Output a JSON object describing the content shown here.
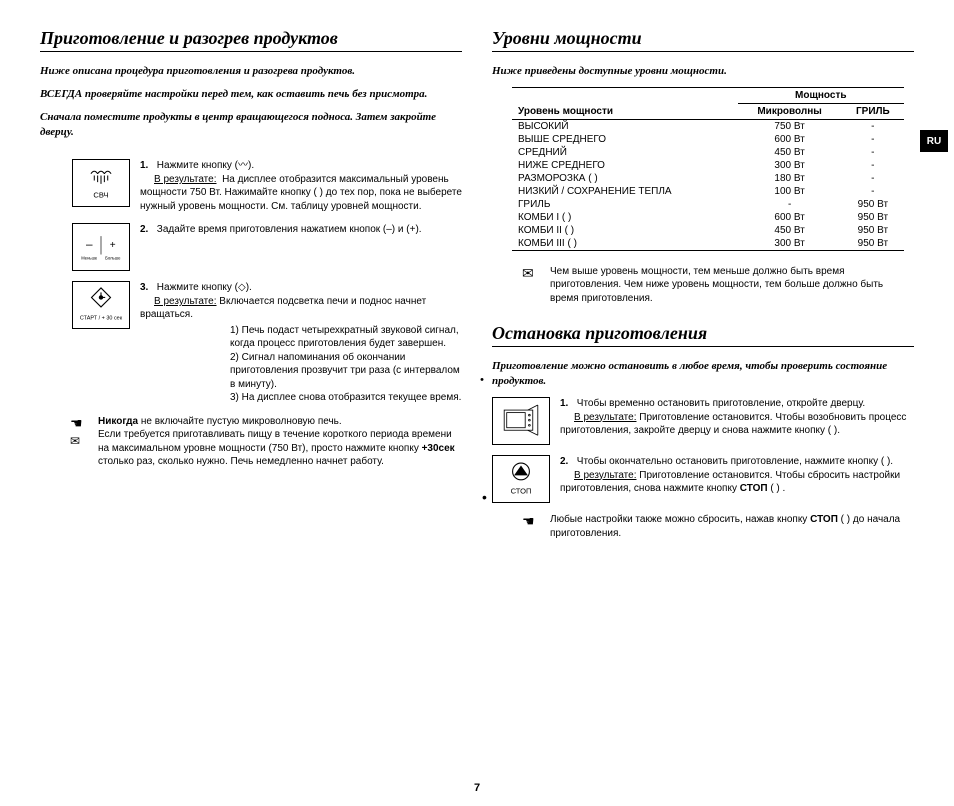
{
  "page_number": "7",
  "lang_tab": "RU",
  "left": {
    "heading": "Приготовление и разогрев продуктов",
    "intro1": "Ниже описана процедура приготовления и разогрева продуктов.",
    "intro2": "ВСЕГДА проверяйте настройки перед тем, как оставить печь без присмотра.",
    "intro3": "Сначала поместите продукты в центр вращающегося подноса. Затем закройте дверцу.",
    "step1": {
      "num": "1.",
      "text_a": "Нажмите кнопку (",
      "text_b": ").",
      "result_label": "В результате:",
      "result_text": "На дисплее отобразится максимальный уровень мощности 750 Вт. Нажимайте кнопку ( ) до тех пор, пока не выберете нужный уровень мощности. См. таблицу уровней мощности.",
      "icon_label": "СВЧ"
    },
    "step2": {
      "num": "2.",
      "text": "Задайте время приготовления нажатием кнопок (–) и (+).",
      "icon_minus": "–",
      "icon_minus_label": "Меньше",
      "icon_plus": "+",
      "icon_plus_label": "Больше"
    },
    "step3": {
      "num": "3.",
      "text_a": "Нажмите кнопку (",
      "text_b": ").",
      "result_label": "В результате:",
      "result_text": "Включается подсветка печи и поднос начнет вращаться.",
      "li1": "1) Печь подаст четырехкратный звуковой сигнал, когда процесс приготовления будет завершен.",
      "li2": "2) Сигнал напоминания об окончании приготовления прозвучит три раза (с интервалом в минуту).",
      "li3": "3) На дисплее снова отобразится текущее время.",
      "icon_label": "СТАРТ  / + 30 сек"
    },
    "note_a": "Никогда",
    "note_b": " не включайте пустую микроволновую печь.",
    "note_c": "Если требуется приготавливать пищу в течение короткого периода времени на максимальном уровне мощности (750 Вт), просто нажмите кнопку ",
    "note_d": "+30сек",
    "note_e": " столько раз, сколько нужно. Печь немедленно начнет работу."
  },
  "right": {
    "heading_power": "Уровни мощности",
    "intro_power": "Ниже приведены доступные уровни мощности.",
    "table": {
      "h_level": "Уровень мощности",
      "h_power": "Мощность",
      "h_micro": "Микроволны",
      "h_grill": "ГРИЛЬ",
      "rows": [
        {
          "l": "ВЫСОКИЙ",
          "m": "750 Вт",
          "g": "-"
        },
        {
          "l": "ВЫШЕ СРЕДНЕГО",
          "m": "600 Вт",
          "g": "-"
        },
        {
          "l": "СРЕДНИЙ",
          "m": "450 Вт",
          "g": "-"
        },
        {
          "l": "НИЖЕ СРЕДНЕГО",
          "m": "300 Вт",
          "g": "-"
        },
        {
          "l": "РАЗМОРОЗКА ( )",
          "m": "180 Вт",
          "g": "-"
        },
        {
          "l": "НИЗКИЙ / СОХРАНЕНИЕ ТЕПЛА",
          "m": "100 Вт",
          "g": "-"
        },
        {
          "l": "ГРИЛЬ",
          "m": "-",
          "g": "950 Вт"
        },
        {
          "l": "КОМБИ I ( )",
          "m": "600 Вт",
          "g": "950 Вт"
        },
        {
          "l": "КОМБИ II ( )",
          "m": "450 Вт",
          "g": "950 Вт"
        },
        {
          "l": "КОМБИ III ( )",
          "m": "300 Вт",
          "g": "950 Вт"
        }
      ]
    },
    "power_note": "Чем выше уровень мощности, тем меньше должно быть время приготовления. Чем ниже уровень мощности, тем больше должно быть время приготовления.",
    "heading_stop": "Остановка приготовления",
    "intro_stop": "Приготовление можно остановить в любое время, чтобы проверить состояние продуктов.",
    "stop1": {
      "num": "1.",
      "text": "Чтобы временно остановить приготовление, откройте дверцу.",
      "result_label": "В результате:",
      "result_text": "Приготовление остановится. Чтобы возобновить процесс приготовления, закройте дверцу и снова нажмите кнопку ( )."
    },
    "stop2": {
      "num": "2.",
      "text": "Чтобы окончательно остановить приготовление, нажмите кнопку ( ).",
      "result_label": "В результате:",
      "result_text_a": "Приготовление остановится. Чтобы сбросить настройки приготовления, снова нажмите кнопку ",
      "result_text_b": "СТОП",
      "result_text_c": " ( ) .",
      "icon_label": "СТОП"
    },
    "stop_note_a": "Любые настройки также можно сбросить, нажав кнопку ",
    "stop_note_b": "СТОП",
    "stop_note_c": " ( ) до начала приготовления."
  }
}
